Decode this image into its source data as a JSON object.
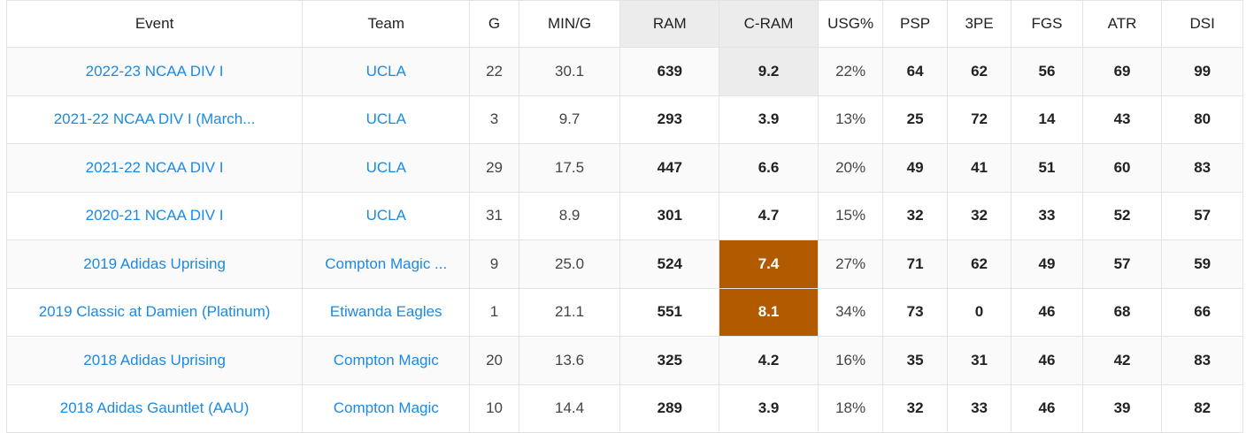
{
  "colors": {
    "link": "#1a8ae5",
    "highlight_orange": "#b25a00",
    "highlight_grey": "#ececec"
  },
  "headers": [
    "Event",
    "Team",
    "G",
    "MIN/G",
    "RAM",
    "C-RAM",
    "USG%",
    "PSP",
    "3PE",
    "FGS",
    "ATR",
    "DSI"
  ],
  "rows": [
    {
      "event": "2022-23 NCAA DIV I",
      "team": "UCLA",
      "g": "22",
      "min": "30.1",
      "ram": "639",
      "cram": "9.2",
      "usg": "22%",
      "psp": "64",
      "tpe": "62",
      "fgs": "56",
      "atr": "69",
      "dsi": "99",
      "cram_highlight": "grey"
    },
    {
      "event": "2021-22 NCAA DIV I (March...",
      "team": "UCLA",
      "g": "3",
      "min": "9.7",
      "ram": "293",
      "cram": "3.9",
      "usg": "13%",
      "psp": "25",
      "tpe": "72",
      "fgs": "14",
      "atr": "43",
      "dsi": "80",
      "cram_highlight": "none"
    },
    {
      "event": "2021-22 NCAA DIV I",
      "team": "UCLA",
      "g": "29",
      "min": "17.5",
      "ram": "447",
      "cram": "6.6",
      "usg": "20%",
      "psp": "49",
      "tpe": "41",
      "fgs": "51",
      "atr": "60",
      "dsi": "83",
      "cram_highlight": "none"
    },
    {
      "event": "2020-21 NCAA DIV I",
      "team": "UCLA",
      "g": "31",
      "min": "8.9",
      "ram": "301",
      "cram": "4.7",
      "usg": "15%",
      "psp": "32",
      "tpe": "32",
      "fgs": "33",
      "atr": "52",
      "dsi": "57",
      "cram_highlight": "none"
    },
    {
      "event": "2019 Adidas Uprising",
      "team": "Compton Magic ...",
      "g": "9",
      "min": "25.0",
      "ram": "524",
      "cram": "7.4",
      "usg": "27%",
      "psp": "71",
      "tpe": "62",
      "fgs": "49",
      "atr": "57",
      "dsi": "59",
      "cram_highlight": "orange"
    },
    {
      "event": "2019 Classic at Damien (Platinum)",
      "team": "Etiwanda Eagles",
      "g": "1",
      "min": "21.1",
      "ram": "551",
      "cram": "8.1",
      "usg": "34%",
      "psp": "73",
      "tpe": "0",
      "fgs": "46",
      "atr": "68",
      "dsi": "66",
      "cram_highlight": "orange"
    },
    {
      "event": "2018 Adidas Uprising",
      "team": "Compton Magic",
      "g": "20",
      "min": "13.6",
      "ram": "325",
      "cram": "4.2",
      "usg": "16%",
      "psp": "35",
      "tpe": "31",
      "fgs": "46",
      "atr": "42",
      "dsi": "83",
      "cram_highlight": "none"
    },
    {
      "event": "2018 Adidas Gauntlet (AAU)",
      "team": "Compton Magic",
      "g": "10",
      "min": "14.4",
      "ram": "289",
      "cram": "3.9",
      "usg": "18%",
      "psp": "32",
      "tpe": "33",
      "fgs": "46",
      "atr": "39",
      "dsi": "82",
      "cram_highlight": "none"
    }
  ]
}
